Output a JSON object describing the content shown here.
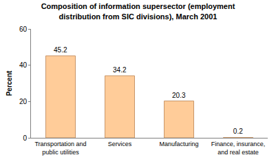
{
  "chart_data": {
    "type": "bar",
    "title": "Composition of information supersector (employment distribution from SIC divisions), March 2001",
    "y_label": "Percent",
    "categories": [
      "Transportation and public utilities",
      "Services",
      "Manufacturing",
      "Finance, insurance, and real estate"
    ],
    "values": [
      45.2,
      34.2,
      20.3,
      0.2
    ],
    "color": "#FFCC99",
    "ylim": [
      0,
      60
    ],
    "yticks": [
      0,
      20,
      40,
      60
    ],
    "grid": false,
    "data_labels": true
  }
}
